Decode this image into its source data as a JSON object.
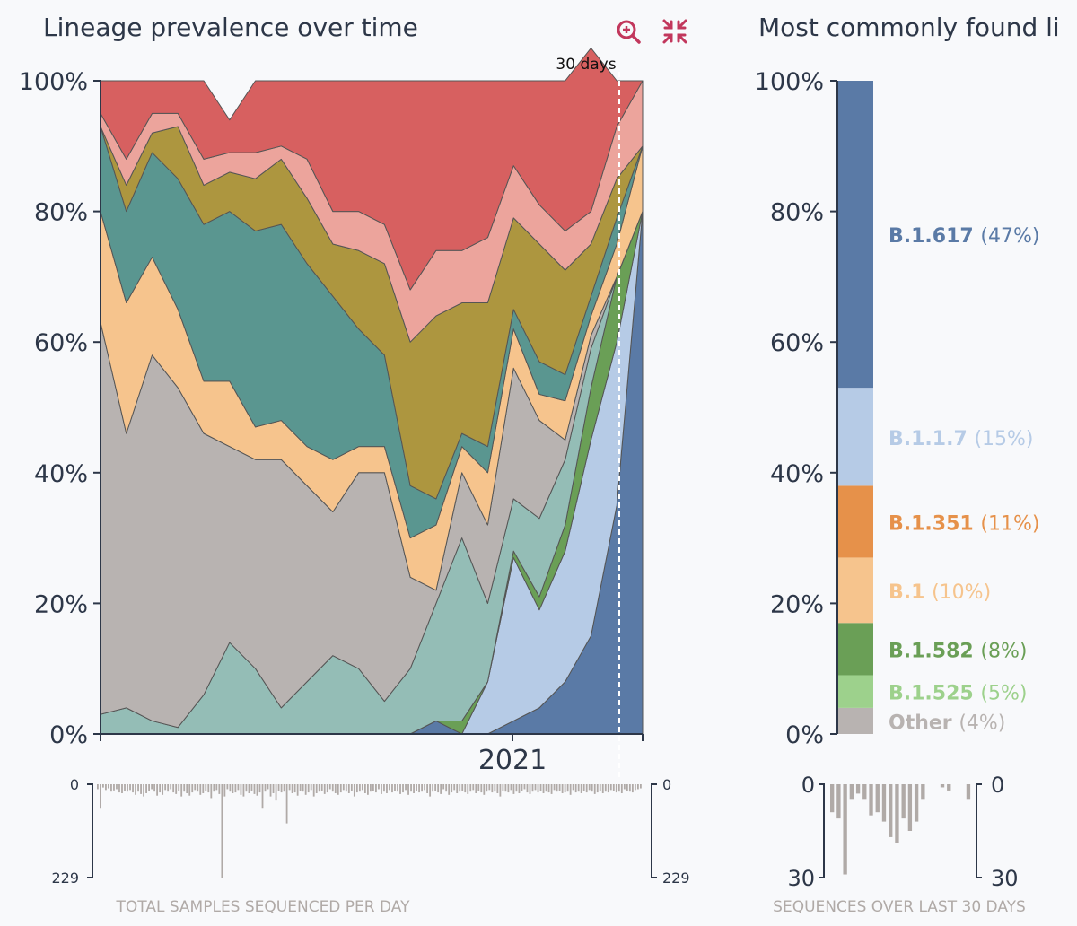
{
  "colors": {
    "B.1.617": "#5a7aa6",
    "B.1.1.7": "#b6cbe6",
    "B.1.351": "#e6914a",
    "B.1": "#f6c48d",
    "B.1.582": "#6a9f56",
    "B.1.525": "#9dd18c",
    "Other": "#b8b3b1",
    "teal_light": "#94bdb6",
    "teal_dark": "#5a9690",
    "olive": "#ad963f",
    "pink": "#eca49c",
    "red": "#d76060",
    "axis": "#2d3748",
    "caption": "#b0aaa7",
    "icon": "#c2375c"
  },
  "left_panel": {
    "title": "Lineage prevalence over time",
    "zoom_label": "30 days",
    "zoom_in_icon": "zoom-in-icon",
    "collapse_icon": "collapse-icon"
  },
  "right_panel": {
    "title": "Most commonly found li"
  },
  "chart_data": [
    {
      "type": "area",
      "title": "Lineage prevalence over time",
      "ylabel": "",
      "ylim": [
        0,
        100
      ],
      "yticks": [
        "0%",
        "20%",
        "40%",
        "60%",
        "80%",
        "100%"
      ],
      "xticks": [
        "2021"
      ],
      "annotation": "30 days",
      "series": [
        {
          "name": "B.1.617",
          "values": [
            0,
            0,
            0,
            0,
            0,
            0,
            0,
            0,
            0,
            0,
            0,
            0,
            0,
            2,
            0,
            0,
            2,
            4,
            8,
            15,
            35,
            80
          ]
        },
        {
          "name": "B.1.1.7",
          "values": [
            0,
            0,
            0,
            0,
            0,
            0,
            0,
            0,
            0,
            0,
            0,
            0,
            0,
            0,
            0,
            8,
            25,
            15,
            20,
            30,
            25,
            0
          ]
        },
        {
          "name": "B.1.582",
          "values": [
            0,
            0,
            0,
            0,
            0,
            0,
            0,
            0,
            0,
            0,
            0,
            0,
            0,
            0,
            2,
            0,
            1,
            2,
            4,
            8,
            10,
            0
          ]
        },
        {
          "name": "teal-light",
          "values": [
            3,
            4,
            2,
            1,
            6,
            14,
            10,
            4,
            8,
            12,
            10,
            5,
            10,
            18,
            28,
            12,
            8,
            12,
            10,
            6,
            0,
            0
          ]
        },
        {
          "name": "Other",
          "values": [
            60,
            42,
            56,
            52,
            40,
            30,
            32,
            38,
            30,
            22,
            30,
            35,
            14,
            2,
            10,
            12,
            20,
            15,
            3,
            2,
            0,
            0
          ]
        },
        {
          "name": "B.1",
          "values": [
            17,
            20,
            15,
            12,
            8,
            10,
            5,
            6,
            6,
            8,
            4,
            4,
            6,
            10,
            4,
            8,
            6,
            4,
            6,
            3,
            5,
            10
          ]
        },
        {
          "name": "teal-dark",
          "values": [
            13,
            14,
            16,
            20,
            24,
            26,
            30,
            30,
            28,
            25,
            18,
            14,
            8,
            4,
            2,
            4,
            3,
            5,
            4,
            3,
            4,
            0
          ]
        },
        {
          "name": "olive",
          "values": [
            0,
            4,
            3,
            8,
            6,
            6,
            8,
            10,
            10,
            8,
            12,
            14,
            22,
            28,
            20,
            22,
            14,
            18,
            16,
            8,
            6,
            0
          ]
        },
        {
          "name": "pink",
          "values": [
            2,
            4,
            3,
            2,
            4,
            3,
            4,
            2,
            6,
            5,
            6,
            6,
            8,
            10,
            8,
            10,
            8,
            6,
            6,
            5,
            8,
            10
          ]
        },
        {
          "name": "red",
          "values": [
            5,
            12,
            5,
            5,
            12,
            5,
            11,
            10,
            12,
            20,
            20,
            22,
            32,
            26,
            26,
            24,
            13,
            19,
            23,
            25,
            7,
            0
          ]
        }
      ]
    },
    {
      "type": "bar",
      "title": "Most commonly found li",
      "ylim": [
        0,
        100
      ],
      "yticks": [
        "0%",
        "20%",
        "40%",
        "60%",
        "80%",
        "100%"
      ],
      "segments": [
        {
          "name": "Other",
          "label": "Other",
          "pct_label": "(4%)",
          "value": 4
        },
        {
          "name": "B.1.525",
          "label": "B.1.525",
          "pct_label": "(5%)",
          "value": 5
        },
        {
          "name": "B.1.582",
          "label": "B.1.582",
          "pct_label": "(8%)",
          "value": 8
        },
        {
          "name": "B.1",
          "label": "B.1",
          "pct_label": "(10%)",
          "value": 10
        },
        {
          "name": "B.1.351",
          "label": "B.1.351",
          "pct_label": "(11%)",
          "value": 11
        },
        {
          "name": "B.1.1.7",
          "label": "B.1.1.7",
          "pct_label": "(15%)",
          "value": 15
        },
        {
          "name": "B.1.617",
          "label": "B.1.617",
          "pct_label": "(47%)",
          "value": 47
        }
      ]
    },
    {
      "type": "bar",
      "title": "TOTAL SAMPLES SEQUENCED PER DAY",
      "ylim": [
        0,
        229
      ],
      "yticks_left": [
        "0",
        "229"
      ],
      "yticks_right": [
        "0",
        "229"
      ],
      "values": [
        12,
        60,
        8,
        14,
        10,
        18,
        15,
        12,
        20,
        22,
        16,
        18,
        14,
        20,
        26,
        18,
        24,
        30,
        22,
        16,
        12,
        18,
        28,
        20,
        26,
        14,
        18,
        12,
        20,
        24,
        16,
        30,
        18,
        22,
        28,
        20,
        14,
        18,
        26,
        22,
        16,
        20,
        34,
        18,
        14,
        24,
        229,
        30,
        12,
        18,
        22,
        20,
        14,
        26,
        30,
        18,
        22,
        16,
        24,
        28,
        20,
        60,
        18,
        12,
        30,
        22,
        40,
        16,
        20,
        18,
        96,
        14,
        22,
        20,
        28,
        16,
        18,
        26,
        20,
        14,
        30,
        22,
        18,
        16,
        24,
        20,
        12,
        18,
        22,
        26,
        20,
        14,
        18,
        22,
        16,
        30,
        20,
        18,
        14,
        22,
        26,
        18,
        16,
        20,
        12,
        24,
        18,
        22,
        14,
        20,
        16,
        18,
        24,
        20,
        14,
        26,
        18,
        22,
        16,
        20,
        18,
        14,
        22,
        30,
        18,
        16,
        20,
        24,
        12,
        18,
        26,
        20,
        14,
        22,
        18,
        16,
        20,
        24,
        18,
        14,
        22,
        16,
        20,
        26,
        18,
        14,
        20,
        18,
        22,
        30,
        16,
        18,
        20,
        14,
        24,
        18,
        22,
        16,
        12,
        20,
        24,
        18,
        14,
        20,
        16,
        22,
        18,
        20,
        24,
        14,
        18,
        16,
        22,
        20,
        18,
        26,
        14,
        20,
        18,
        22,
        16,
        20,
        14,
        18,
        24,
        20,
        16,
        22,
        18,
        20,
        14,
        16,
        20,
        18,
        22,
        12,
        16,
        18,
        20,
        14,
        12,
        10
      ]
    },
    {
      "type": "bar",
      "title": "SEQUENCES OVER LAST 30 DAYS",
      "ylim": [
        0,
        30
      ],
      "yticks_left": [
        "0",
        "30"
      ],
      "yticks_right": [
        "0",
        "30"
      ],
      "values": [
        9,
        11,
        29,
        5,
        3,
        5,
        10,
        9,
        12,
        17,
        19,
        11,
        15,
        12,
        5,
        0,
        0,
        1,
        2,
        0,
        0,
        5
      ]
    }
  ]
}
